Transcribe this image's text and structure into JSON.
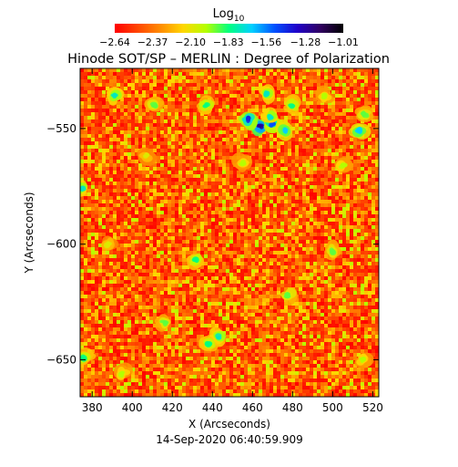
{
  "chart_data": {
    "type": "heatmap",
    "title": "Hinode SOT/SP – MERLIN : Degree of Polarization",
    "colorbar": {
      "label_main": "Log",
      "label_sub": "10",
      "ticks": [
        "−2.64",
        "−2.37",
        "−2.10",
        "−1.83",
        "−1.56",
        "−1.28",
        "−1.01"
      ],
      "tick_values": [
        -2.64,
        -2.37,
        -2.1,
        -1.83,
        -1.56,
        -1.28,
        -1.01
      ],
      "range": [
        -2.64,
        -1.01
      ],
      "colors": [
        "#ff0000",
        "#ff4500",
        "#ff8c00",
        "#ffd700",
        "#b4ff00",
        "#00ff80",
        "#00d0ff",
        "#0050ff",
        "#2000c8",
        "#300060",
        "#000000"
      ]
    },
    "xlabel": "X (Arcseconds)",
    "ylabel": "Y (Arcseconds)",
    "xlim": [
      374,
      523
    ],
    "ylim": [
      -666,
      -524
    ],
    "x_ticks": [
      380,
      400,
      420,
      440,
      460,
      480,
      500,
      520
    ],
    "y_ticks": [
      -550,
      -600,
      -650
    ],
    "timestamp": "14-Sep-2020 06:40:59.909",
    "grid": false,
    "features": [
      {
        "x": 464,
        "y": -549,
        "level": 0.85
      },
      {
        "x": 458,
        "y": -546,
        "level": 0.75
      },
      {
        "x": 470,
        "y": -548,
        "level": 0.7
      },
      {
        "x": 476,
        "y": -551,
        "level": 0.6
      },
      {
        "x": 469,
        "y": -545,
        "level": 0.55
      },
      {
        "x": 467,
        "y": -535,
        "level": 0.55
      },
      {
        "x": 437,
        "y": -540,
        "level": 0.5
      },
      {
        "x": 391,
        "y": -536,
        "level": 0.55
      },
      {
        "x": 411,
        "y": -540,
        "level": 0.45
      },
      {
        "x": 513,
        "y": -551,
        "level": 0.6
      },
      {
        "x": 516,
        "y": -544,
        "level": 0.45
      },
      {
        "x": 480,
        "y": -540,
        "level": 0.5
      },
      {
        "x": 375,
        "y": -576,
        "level": 0.55
      },
      {
        "x": 432,
        "y": -607,
        "level": 0.5
      },
      {
        "x": 500,
        "y": -603,
        "level": 0.45
      },
      {
        "x": 478,
        "y": -622,
        "level": 0.45
      },
      {
        "x": 443,
        "y": -640,
        "level": 0.55
      },
      {
        "x": 438,
        "y": -643,
        "level": 0.5
      },
      {
        "x": 416,
        "y": -634,
        "level": 0.45
      },
      {
        "x": 376,
        "y": -649,
        "level": 0.5
      },
      {
        "x": 395,
        "y": -656,
        "level": 0.4
      },
      {
        "x": 515,
        "y": -650,
        "level": 0.4
      },
      {
        "x": 455,
        "y": -565,
        "level": 0.4
      },
      {
        "x": 505,
        "y": -566,
        "level": 0.4
      },
      {
        "x": 407,
        "y": -562,
        "level": 0.35
      },
      {
        "x": 496,
        "y": -536,
        "level": 0.4
      },
      {
        "x": 388,
        "y": -600,
        "level": 0.35
      }
    ]
  }
}
